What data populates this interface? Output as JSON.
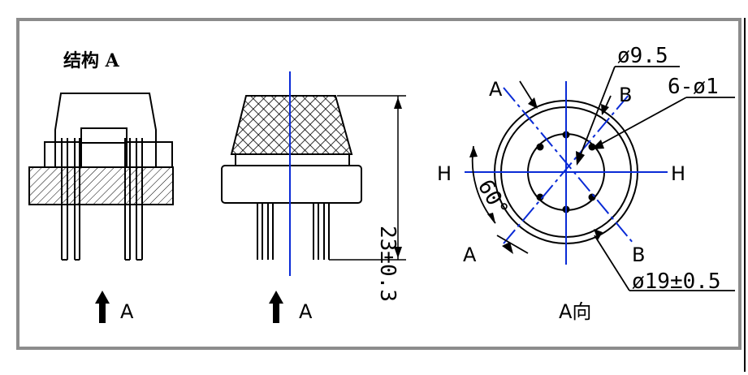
{
  "drawing": {
    "structure_label": "结构 A",
    "view_arrow_left": "A",
    "view_arrow_middle": "A",
    "view_caption": "A向",
    "height_dim": "23±0.3",
    "dia_small": "ø9.5",
    "holes": "6-ø1",
    "dia_large": "ø19±0.5",
    "angle": "60°",
    "label_A_top": "A",
    "label_A_bottom": "A",
    "label_B_top": "B",
    "label_B_bottom": "B",
    "label_H_left": "H",
    "label_H_right": "H"
  },
  "colors": {
    "frame": "#8c8c8c",
    "line": "#000000",
    "centerline": "#0a2bd6"
  }
}
